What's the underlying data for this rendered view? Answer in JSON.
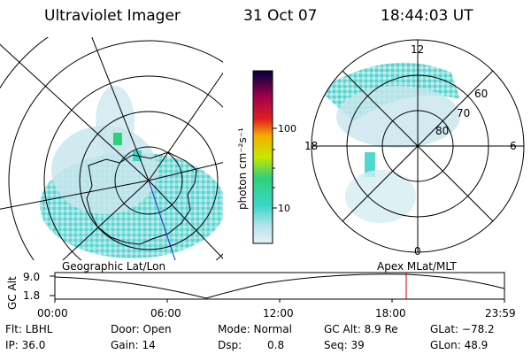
{
  "header": {
    "instrument": "Ultraviolet Imager",
    "date": "31 Oct 07",
    "time": "18:44:03 UT"
  },
  "colorbar": {
    "label": "photon cm⁻²s⁻¹",
    "ticks": [
      "100",
      "10"
    ]
  },
  "polar_plot": {
    "mlt_labels": {
      "top": "12",
      "left": "18",
      "right": "6",
      "bottom": "0"
    },
    "lat_labels": [
      "60",
      "70",
      "80"
    ]
  },
  "orbit_panel": {
    "left_label": "Geographic Lat/Lon",
    "right_label": "Apex MLat/MLT",
    "axis_label": "GC Alt",
    "y_ticks": [
      "9.0",
      "1.8"
    ],
    "x_ticks": [
      "00:00",
      "06:00",
      "12:00",
      "18:00",
      "23:59"
    ]
  },
  "status": {
    "row1": {
      "flt": "Flt: LBHL",
      "door": "Door: Open",
      "mode": "Mode: Normal",
      "gcalt": "GC Alt: 8.9 Re",
      "glat": "GLat: −78.2"
    },
    "row2": {
      "ip": "IP: 36.0",
      "gain": "Gain: 14",
      "dsp_label": "Dsp:",
      "dsp_value": "0.8",
      "seq": "Seq: 39",
      "glon": "GLon: 48.9"
    }
  },
  "colors": {
    "aurora_light": "#c8e6ec",
    "aurora_mid": "#7fd8d8",
    "aurora_bright": "#3ad6c8",
    "aurora_green": "#2fd07a",
    "marker_red": "#d40000",
    "satellite_track_blue": "#2020c0"
  }
}
